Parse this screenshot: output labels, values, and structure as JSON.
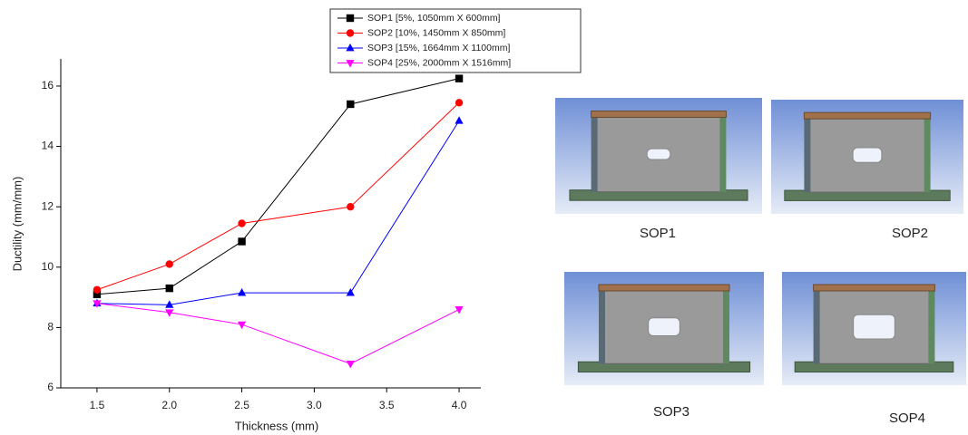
{
  "chart_data": {
    "type": "line",
    "x_label": "Thickness (mm)",
    "y_label": "Ductility (mm/mm)",
    "x": [
      1.5,
      2.0,
      2.5,
      3.25,
      4.0
    ],
    "series": [
      {
        "name": "SOP1 [5%, 1050mm X 600mm]",
        "color": "#000000",
        "marker": "square",
        "values": [
          9.1,
          9.3,
          10.85,
          15.4,
          16.25
        ]
      },
      {
        "name": "SOP2 [10%, 1450mm X 850mm]",
        "color": "#ff0000",
        "marker": "circle",
        "values": [
          9.25,
          10.1,
          11.45,
          12.0,
          15.45
        ]
      },
      {
        "name": "SOP3 [15%, 1664mm X 1100mm]",
        "color": "#0000ff",
        "marker": "triangle-up",
        "values": [
          8.8,
          8.75,
          9.15,
          9.15,
          14.85
        ]
      },
      {
        "name": "SOP4 [25%, 2000mm X 1516mm]",
        "color": "#ff00ff",
        "marker": "triangle-down",
        "values": [
          8.8,
          8.5,
          8.1,
          6.8,
          8.6
        ]
      }
    ],
    "xlim": [
      1.25,
      4.15
    ],
    "xticks": [
      1.5,
      {
        "value": 2.0,
        "label": "2.0"
      },
      2.5,
      {
        "value": 3.0,
        "label": "3.0"
      },
      3.5,
      {
        "value": 4.0,
        "label": "4.0"
      }
    ],
    "ylim": [
      6,
      16.9
    ],
    "yticks": [
      6,
      8,
      10,
      12,
      14,
      16
    ],
    "grid": false
  },
  "panels": [
    {
      "label": "SOP1"
    },
    {
      "label": "SOP2"
    },
    {
      "label": "SOP3"
    },
    {
      "label": "SOP4"
    }
  ]
}
